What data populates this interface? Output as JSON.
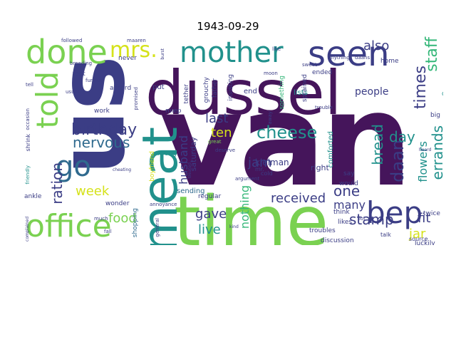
{
  "title": "1943-09-29",
  "words": {
    "van": "van",
    "us": "us",
    "dussel": "dussel",
    "time": "time",
    "meat": "meat",
    "seen": "seen",
    "mother": "mother",
    "done": "done",
    "told": "told",
    "office": "office",
    "bep": "bep",
    "go": "go",
    "mrs": "mrs.",
    "birthday": "birthday",
    "nervous": "nervous",
    "cheese": "cheese",
    "daan": "daan",
    "bread": "bread",
    "times": "times",
    "staff": "staff",
    "errands": "errands",
    "flowers": "flowers",
    "also": "also",
    "ration": "ration",
    "week": "week",
    "husband": "husband",
    "last": "last",
    "ten": "ten",
    "jam": "jam",
    "received": "received",
    "one": "one",
    "many": "many",
    "stamp": "stamp",
    "jar": "jar",
    "fit": "fit",
    "day": "day",
    "food": "food",
    "gave": "gave",
    "live": "live",
    "nothing": "nothing",
    "people": "people",
    "kleiman": "kleiman",
    "right": "right",
    "comforted": "comforted",
    "saturday": "saturday",
    "sending": "sending",
    "lists": "lists",
    "end": "end",
    "put": "put",
    "accord": "accord",
    "work": "work",
    "miep": "miep",
    "wrong": "wrong",
    "boyfriend": "boyfriend",
    "shopping": "shopping",
    "regular": "regular",
    "father": "father",
    "grouchy": "grouchy",
    "insisting": "insisting",
    "tether": "tether",
    "something": "something",
    "sprained": "sprained",
    "ended": "ended",
    "home": "home",
    "drama": "drama",
    "sick": "sick",
    "big": "big",
    "say": "say",
    "would": "would",
    "think": "think",
    "likes": "likes",
    "troubles": "troubles",
    "discussion": "discussion",
    "twice": "twice",
    "luckily": "luckily",
    "talk": "talk",
    "source": "source",
    "ankle": "ankle",
    "wonder": "wonder",
    "foot": "foot",
    "never": "never",
    "breeding": "breeding",
    "followed": "followed",
    "maaren": "maaren",
    "anything": "anything",
    "daans": "daans",
    "moon": "moon",
    "sweet": "sweet",
    "cold": "cold",
    "argument": "argument",
    "mr": "mr.",
    "friendly": "friendly",
    "shrink": "shrink",
    "promised": "promised",
    "annoyance": "annoyance",
    "general": "general",
    "deserve": "deserve",
    "great": "great",
    "usual": "usual",
    "furious": "furious",
    "fall": "fall",
    "much": "much",
    "tell": "tell",
    "kind": "kind",
    "like": "like",
    "lot": "lot",
    "trouble": "trouble",
    "heard": "heard",
    "treated": "treated",
    "away": "away",
    "burst": "burst",
    "cheating": "cheating",
    "occasion": "occasion",
    "complained": "complained"
  },
  "colors": {
    "dark_purple": "#45155b",
    "indigo": "#3b3d85",
    "blue": "#2f6a8e",
    "teal": "#21918c",
    "green": "#35b779",
    "lime": "#7ad151",
    "yellow": "#d5e21a"
  }
}
